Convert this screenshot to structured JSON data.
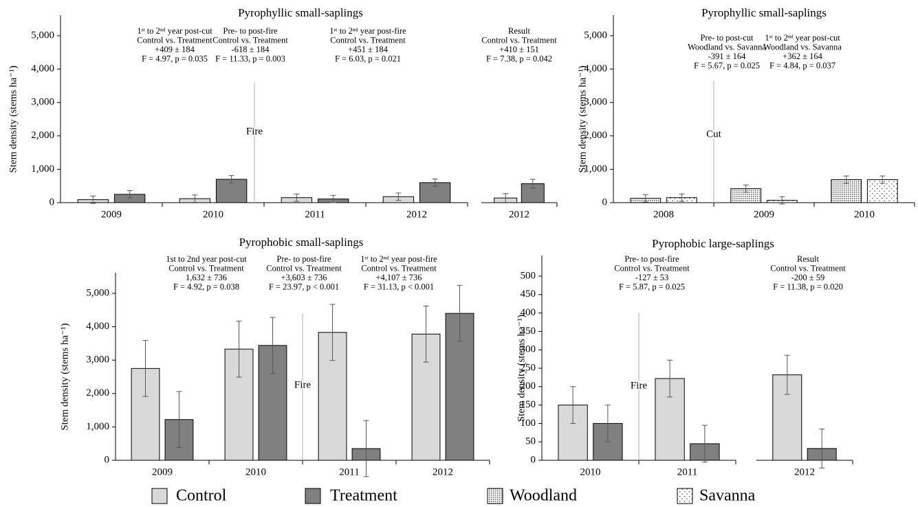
{
  "chart_data": [
    {
      "type": "bar",
      "title": "Pyrophyllic small-saplings",
      "ylabel": "Stem density (stems ha⁻¹)",
      "categories": [
        "2009",
        "2010",
        "2011",
        "2012",
        "2012"
      ],
      "axis_break_before": 4,
      "series": [
        {
          "name": "Control",
          "color": "#d9d9d9",
          "values": [
            90,
            120,
            150,
            180,
            140
          ],
          "errors": [
            110,
            110,
            110,
            110,
            130
          ]
        },
        {
          "name": "Treatment",
          "color": "#808080",
          "values": [
            250,
            700,
            110,
            600,
            570
          ],
          "errors": [
            110,
            110,
            110,
            110,
            130
          ]
        }
      ],
      "ylim": [
        0,
        5000
      ],
      "yticks": [
        0,
        {
          "value": 1000,
          "label": "1,000"
        },
        {
          "value": 2000,
          "label": "2,000"
        },
        {
          "value": 3000,
          "label": "3,000"
        },
        {
          "value": 4000,
          "label": "4,000"
        },
        {
          "value": 5000,
          "label": "5,000"
        }
      ],
      "divider": {
        "after": 1,
        "label": "Fire"
      },
      "annotations": [
        [
          "1ˢᵗ to 2ⁿᵈ year post-cut",
          "Control vs. Treatment",
          "+409 ± 184",
          "F = 4.97, p = 0.035"
        ],
        [
          "Pre- to post-fire",
          "Control vs. Treatment",
          "-618 ± 184",
          "F = 11.33, p = 0.003"
        ],
        [
          "1ˢᵗ to 2ⁿᵈ year post-fire",
          "Control vs. Treatment",
          "+451 ± 184",
          "F = 6.03, p = 0.021"
        ],
        [
          "Result",
          "Control vs. Treatment",
          "+410 ± 151",
          "F = 7.38, p = 0.042"
        ]
      ]
    },
    {
      "type": "bar",
      "title": "Pyrophyllic small-saplings",
      "ylabel": "Stem density (stems ha⁻¹)",
      "categories": [
        "2008",
        "2009",
        "2010"
      ],
      "series": [
        {
          "name": "Woodland",
          "color": "#ffffff",
          "pattern": "dense-dots",
          "values": [
            130,
            420,
            690
          ],
          "errors": [
            110,
            110,
            110
          ]
        },
        {
          "name": "Savanna",
          "color": "#ffffff",
          "pattern": "sparse-dots",
          "values": [
            150,
            70,
            690
          ],
          "errors": [
            110,
            110,
            110
          ]
        }
      ],
      "ylim": [
        0,
        5000
      ],
      "yticks": [
        0,
        {
          "value": 1000,
          "label": "1,000"
        },
        {
          "value": 2000,
          "label": "2,000"
        },
        {
          "value": 3000,
          "label": "3,000"
        },
        {
          "value": 4000,
          "label": "4,000"
        },
        {
          "value": 5000,
          "label": "5,000"
        }
      ],
      "divider": {
        "after": 0,
        "label": "Cut"
      },
      "annotations": [
        [
          "Pre- to post-cut",
          "Woodland vs. Savanna",
          "-391 ± 164",
          "F = 5.67, p = 0.025"
        ],
        [
          "1ˢᵗ to 2ⁿᵈ year post-cut",
          "Woodland vs. Savanna",
          "+362 ± 164",
          "F = 4.84, p = 0.037"
        ]
      ]
    },
    {
      "type": "bar",
      "title": "Pyrophobic small-saplings",
      "ylabel": "Stem density (stems ha⁻¹)",
      "categories": [
        "2009",
        "2010",
        "2011",
        "2012"
      ],
      "series": [
        {
          "name": "Control",
          "color": "#d9d9d9",
          "values": [
            2750,
            3330,
            3830,
            3780
          ],
          "errors": [
            840,
            840,
            840,
            840
          ]
        },
        {
          "name": "Treatment",
          "color": "#808080",
          "values": [
            1220,
            3440,
            350,
            4400
          ],
          "errors": [
            840,
            840,
            840,
            840
          ]
        }
      ],
      "ylim": [
        0,
        5000
      ],
      "yticks": [
        0,
        {
          "value": 1000,
          "label": "1,000"
        },
        {
          "value": 2000,
          "label": "2,000"
        },
        {
          "value": 3000,
          "label": "3,000"
        },
        {
          "value": 4000,
          "label": "4,000"
        },
        {
          "value": 5000,
          "label": "5,000"
        }
      ],
      "divider": {
        "after": 1,
        "label": "Fire"
      },
      "annotations": [
        [
          "1st to 2nd year post-cut",
          "Control vs. Treatment",
          "1,632 ± 736",
          "F = 4.92, p = 0.038"
        ],
        [
          "Pre- to post-fire",
          "Control vs. Treatment",
          "+3,603 ± 736",
          "F = 23.97, p < 0.001"
        ],
        [
          "1ˢᵗ to 2ⁿᵈ year post-fire",
          "Control vs. Treatment",
          "+4,107 ± 736",
          "F = 31.13, p < 0.001"
        ]
      ]
    },
    {
      "type": "bar",
      "title": "Pyrophobic large-saplings",
      "ylabel": "Stem density (stems ha⁻¹)",
      "categories": [
        "2010",
        "2011",
        "2012"
      ],
      "axis_break_before": 2,
      "series": [
        {
          "name": "Control",
          "color": "#d9d9d9",
          "values": [
            150,
            222,
            232
          ],
          "errors": [
            50,
            50,
            53
          ]
        },
        {
          "name": "Treatment",
          "color": "#808080",
          "values": [
            100,
            45,
            32
          ],
          "errors": [
            50,
            50,
            53
          ]
        }
      ],
      "ylim": [
        0,
        500
      ],
      "yticks": [
        0,
        50,
        100,
        150,
        200,
        250,
        300,
        350,
        400,
        450,
        500
      ],
      "divider": {
        "after": 0,
        "label": "Fire"
      },
      "annotations": [
        [
          "Pre- to post-fire",
          "Control vs. Treatment",
          "-127 ± 53",
          "F = 5.87, p = 0.025"
        ],
        [
          "Result",
          "Control vs. Treatment",
          "-200 ± 59",
          "F = 11.38, p = 0.020"
        ]
      ]
    }
  ]
}
